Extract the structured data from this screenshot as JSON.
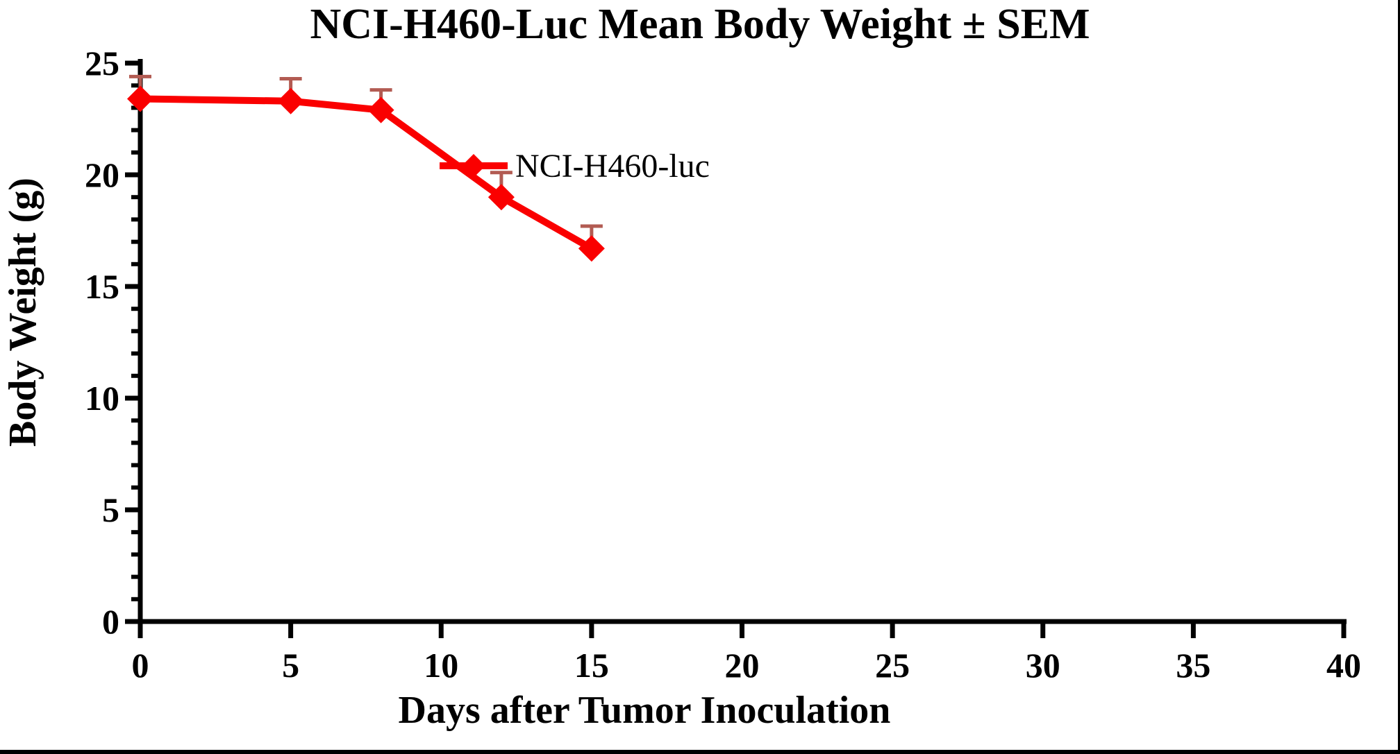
{
  "window": {
    "background_color": "#ffffff",
    "frame_color": "#000000"
  },
  "chart_data": {
    "type": "line",
    "title": "NCI-H460-Luc Mean Body Weight ± SEM",
    "xlabel": "Days after Tumor Inoculation",
    "ylabel": "Body Weight (g)",
    "xlim": [
      0,
      40
    ],
    "ylim": [
      0,
      25
    ],
    "xticks": [
      0,
      5,
      10,
      15,
      20,
      25,
      30,
      35,
      40
    ],
    "yticks": [
      0,
      5,
      10,
      15,
      20,
      25
    ],
    "y_minor_tick_step": 1,
    "grid": false,
    "axis_color": "#000000",
    "legend": {
      "label": "NCI-H460-luc",
      "position": "inline-near-curve"
    },
    "series": [
      {
        "name": "NCI-H460-luc",
        "x": [
          0,
          5,
          8,
          12,
          15
        ],
        "values": [
          23.4,
          23.3,
          22.9,
          19.0,
          16.7
        ],
        "sem_upper": [
          1.0,
          1.0,
          0.9,
          1.1,
          1.0
        ],
        "marker": "diamond",
        "line_color": "#fa0000",
        "marker_color": "#fa0000",
        "error_bar_color": "#b25b52"
      }
    ]
  }
}
